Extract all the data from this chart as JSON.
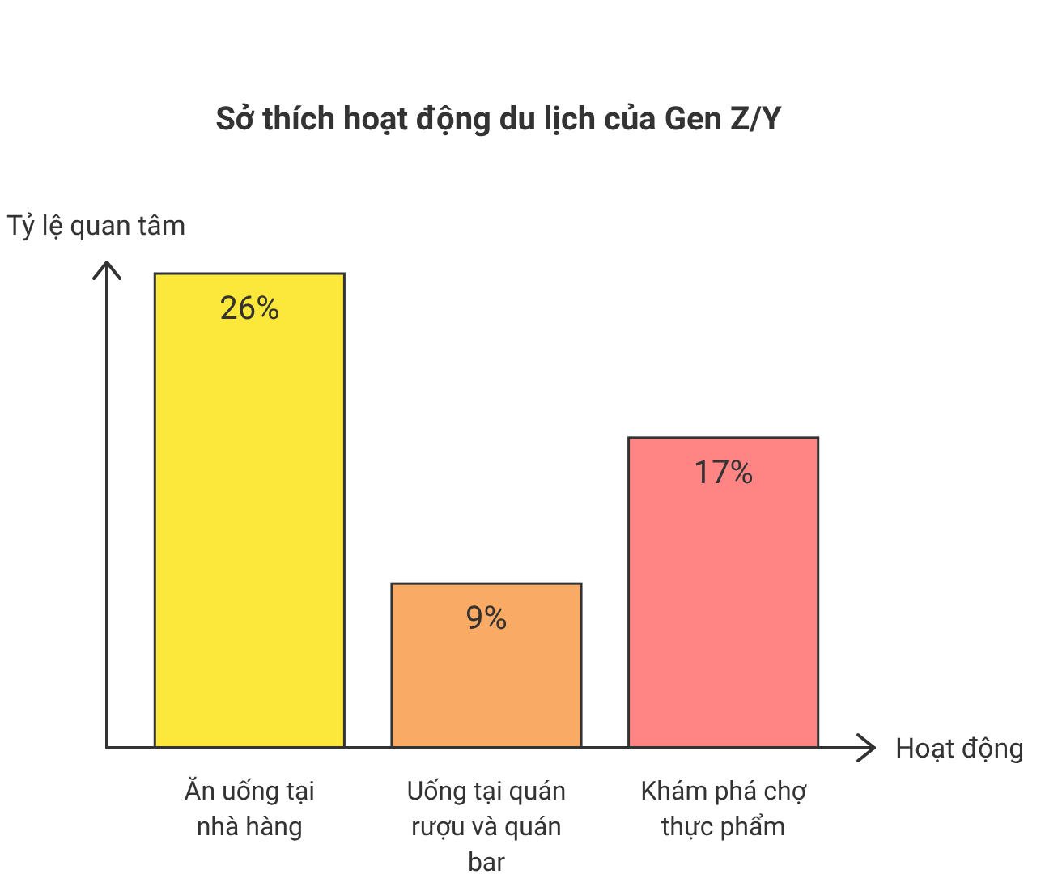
{
  "chart_data": {
    "type": "bar",
    "title": "Sở thích hoạt động du lịch của Gen Z/Y",
    "xlabel": "Hoạt động",
    "ylabel": "Tỷ lệ quan tâm",
    "categories": [
      "Ăn uống tại nhà hàng",
      "Uống tại quán rượu và quán bar",
      "Khám phá chợ thực phẩm"
    ],
    "values": [
      26,
      9,
      17
    ],
    "colors": [
      "#fce83a",
      "#f9ab66",
      "#ff8585"
    ],
    "value_labels": [
      "26%",
      "9%",
      "17%"
    ]
  }
}
